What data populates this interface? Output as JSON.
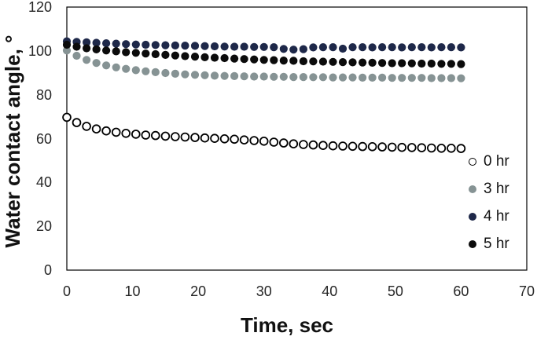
{
  "chart_data": {
    "type": "scatter",
    "title": "",
    "xlabel": "Time, sec",
    "ylabel": "Water contact angle, °",
    "xlim": [
      0,
      70
    ],
    "ylim": [
      0,
      120
    ],
    "x_ticks": [
      0,
      10,
      20,
      30,
      40,
      50,
      60,
      70
    ],
    "y_ticks": [
      0,
      20,
      40,
      60,
      80,
      100,
      120
    ],
    "grid": false,
    "legend_position": "inside-right-bottom",
    "axis_color": "#000000",
    "tick_label_color": "#262626",
    "x": [
      0,
      1.5,
      3,
      4.5,
      6,
      7.5,
      9,
      10.5,
      12,
      13.5,
      15,
      16.5,
      18,
      19.5,
      21,
      22.5,
      24,
      25.5,
      27,
      28.5,
      30,
      31.5,
      33,
      34.5,
      36,
      37.5,
      39,
      40.5,
      42,
      43.5,
      45,
      46.5,
      48,
      49.5,
      51,
      52.5,
      54,
      55.5,
      57,
      58.5,
      60
    ],
    "series": [
      {
        "name": "0 hr",
        "marker": "open-circle",
        "color": "#000000",
        "fill": "#ffffff",
        "values": [
          69.7,
          67.3,
          65.6,
          64.4,
          63.5,
          62.9,
          62.4,
          62.0,
          61.6,
          61.4,
          61.1,
          60.9,
          60.7,
          60.5,
          60.3,
          60.1,
          59.9,
          59.7,
          59.4,
          59.1,
          58.8,
          58.4,
          58.0,
          57.6,
          57.3,
          57.1,
          56.9,
          56.7,
          56.6,
          56.5,
          56.4,
          56.3,
          56.2,
          56.1,
          56.0,
          55.9,
          55.8,
          55.7,
          55.6,
          55.6,
          55.5
        ]
      },
      {
        "name": "3 hr",
        "marker": "filled-circle",
        "color": "#869394",
        "values": [
          100.2,
          97.8,
          95.9,
          94.5,
          93.4,
          92.5,
          91.8,
          91.2,
          90.7,
          90.3,
          89.9,
          89.6,
          89.3,
          89.1,
          88.9,
          88.7,
          88.6,
          88.5,
          88.4,
          88.3,
          88.3,
          88.2,
          88.2,
          88.1,
          88.1,
          88.0,
          88.0,
          87.9,
          87.9,
          87.9,
          87.8,
          87.8,
          87.8,
          87.7,
          87.7,
          87.7,
          87.7,
          87.6,
          87.6,
          87.6,
          87.5
        ]
      },
      {
        "name": "4 hr",
        "marker": "filled-circle",
        "color": "#1e2849",
        "values": [
          104.4,
          104.1,
          103.9,
          103.7,
          103.5,
          103.3,
          103.1,
          102.9,
          102.8,
          102.7,
          102.6,
          102.5,
          102.4,
          102.3,
          102.2,
          102.1,
          102.0,
          101.9,
          101.9,
          101.8,
          101.8,
          101.7,
          100.9,
          100.6,
          100.8,
          101.6,
          101.7,
          101.7,
          101.0,
          101.7,
          101.7,
          101.6,
          101.7,
          101.7,
          101.6,
          101.7,
          101.7,
          101.6,
          101.7,
          101.7,
          101.6
        ]
      },
      {
        "name": "5 hr",
        "marker": "filled-circle",
        "color": "#0b0b0b",
        "values": [
          102.8,
          101.9,
          101.2,
          100.7,
          100.2,
          99.8,
          99.4,
          99.1,
          98.8,
          98.5,
          98.2,
          97.9,
          97.6,
          97.4,
          97.1,
          96.9,
          96.7,
          96.5,
          96.3,
          96.1,
          95.9,
          95.8,
          95.6,
          95.5,
          95.3,
          95.2,
          95.1,
          95.0,
          94.9,
          94.8,
          94.7,
          94.6,
          94.5,
          94.4,
          94.4,
          94.3,
          94.2,
          94.2,
          94.1,
          94.1,
          94.0
        ]
      }
    ]
  }
}
